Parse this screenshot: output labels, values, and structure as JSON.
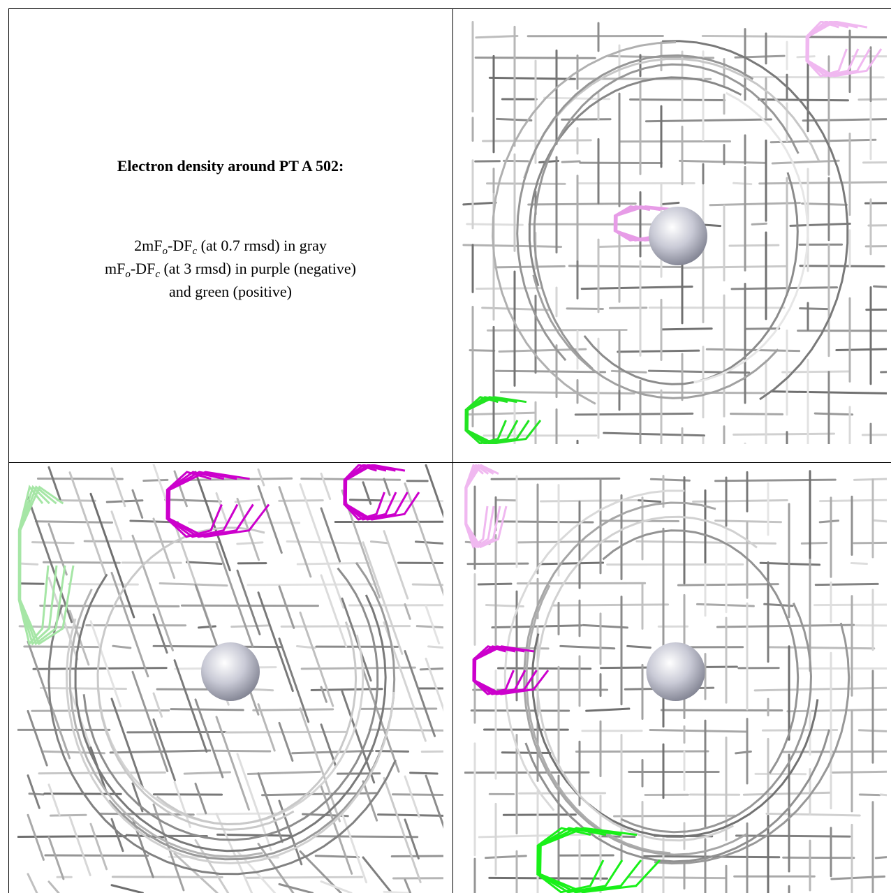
{
  "title": "Electron density around PT A 502:",
  "legend": [
    [
      "2mF",
      "o",
      "-DF",
      "c",
      " (at 0.7 rmsd) in gray"
    ],
    [
      "mF",
      "o",
      "-DF",
      "c",
      " (at 3 rmsd) in purple (negative)"
    ],
    [
      "and green (positive)"
    ]
  ]
}
